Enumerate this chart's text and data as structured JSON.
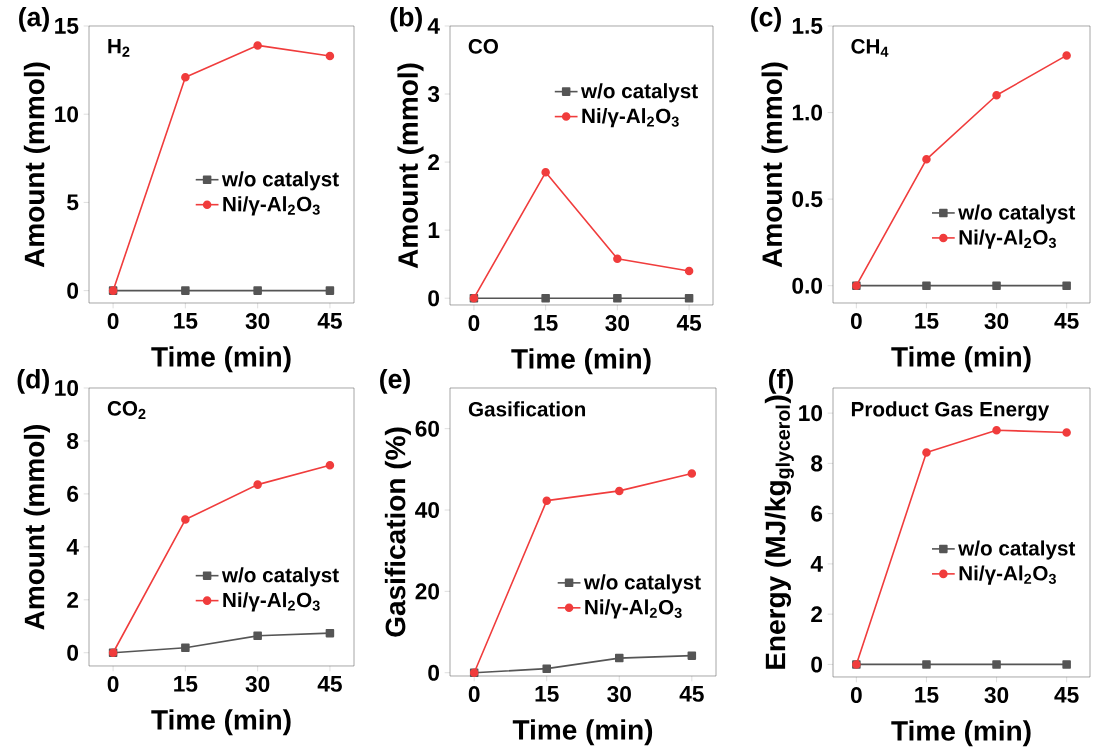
{
  "chart_data": [
    {
      "type": "line",
      "title": "H$_{2}$",
      "xlabel": "Time (min)",
      "ylabel": "Amount (mmol)",
      "annotations": [
        "(a)"
      ],
      "x": [
        0,
        15,
        30,
        45
      ],
      "xlim": [
        -5,
        50
      ],
      "ylim": [
        -0.7,
        15
      ],
      "xticks": [
        0,
        15,
        30,
        45
      ],
      "yticks": [
        0,
        5,
        10,
        15
      ],
      "legend": "right",
      "series": [
        {
          "name": "w/o catalyst",
          "color": "#555555",
          "marker": "square",
          "values": [
            0,
            0,
            0,
            0
          ]
        },
        {
          "name": "Ni/γ-Al$_{2}$O$_{3}$",
          "color": "#f03c3c",
          "marker": "circle",
          "values": [
            0,
            12.1,
            13.9,
            13.3
          ]
        }
      ]
    },
    {
      "type": "line",
      "title": "CO",
      "xlabel": "Time (min)",
      "ylabel": "Amount (mmol)",
      "annotations": [
        "(b)"
      ],
      "x": [
        0,
        15,
        30,
        45
      ],
      "xlim": [
        -5,
        50
      ],
      "ylim": [
        -0.1,
        4
      ],
      "xticks": [
        0,
        15,
        30,
        45
      ],
      "yticks": [
        0,
        1,
        2,
        3,
        4
      ],
      "legend": "top right",
      "series": [
        {
          "name": "w/o catalyst",
          "color": "#555555",
          "marker": "square",
          "values": [
            0,
            0,
            0,
            0
          ]
        },
        {
          "name": "Ni/γ-Al$_{2}$O$_{3}$",
          "color": "#f03c3c",
          "marker": "circle",
          "values": [
            0,
            1.85,
            0.58,
            0.4
          ]
        }
      ]
    },
    {
      "type": "line",
      "title": "CH$_{4}$",
      "xlabel": "Time (min)",
      "ylabel": "Amount (mmol)",
      "annotations": [
        "(c)"
      ],
      "x": [
        0,
        15,
        30,
        45
      ],
      "xlim": [
        -5,
        50
      ],
      "ylim": [
        -0.1,
        1.5
      ],
      "xticks": [
        0,
        15,
        30,
        45
      ],
      "yticks": [
        {
          "value": 0,
          "label": "0.0"
        },
        {
          "value": 0.5,
          "label": "0.5"
        },
        {
          "value": 1,
          "label": "1.0"
        },
        {
          "value": 1.5,
          "label": "1.5"
        }
      ],
      "legend": "bottom right",
      "series": [
        {
          "name": "w/o catalyst",
          "color": "#555555",
          "marker": "square",
          "values": [
            0,
            0,
            0,
            0
          ]
        },
        {
          "name": "Ni/γ-Al$_{2}$O$_{3}$",
          "color": "#f03c3c",
          "marker": "circle",
          "values": [
            0,
            0.73,
            1.1,
            1.33
          ]
        }
      ]
    },
    {
      "type": "line",
      "title": "CO$_{2}$",
      "xlabel": "Time (min)",
      "ylabel": "Amount (mmol)",
      "annotations": [
        "(d)"
      ],
      "x": [
        0,
        15,
        30,
        45
      ],
      "xlim": [
        -5,
        50
      ],
      "ylim": [
        -0.5,
        10
      ],
      "xticks": [
        0,
        15,
        30,
        45
      ],
      "yticks": [
        0,
        2,
        4,
        6,
        8,
        10
      ],
      "legend": "bottom right",
      "series": [
        {
          "name": "w/o catalyst",
          "color": "#555555",
          "marker": "square",
          "values": [
            0,
            0.19,
            0.64,
            0.74
          ]
        },
        {
          "name": "Ni/γ-Al$_{2}$O$_{3}$",
          "color": "#f03c3c",
          "marker": "circle",
          "values": [
            0,
            5.03,
            6.35,
            7.08
          ]
        }
      ]
    },
    {
      "type": "line",
      "title": "Gasification",
      "xlabel": "Time (min)",
      "ylabel": "Gasification (%)",
      "annotations": [
        "(e)"
      ],
      "x": [
        0,
        15,
        30,
        45
      ],
      "xlim": [
        -5,
        50
      ],
      "ylim": [
        -0.8,
        70
      ],
      "xticks": [
        0,
        15,
        30,
        45
      ],
      "yticks": [
        0,
        20,
        40,
        60
      ],
      "legend": "bottom right",
      "series": [
        {
          "name": "w/o catalyst",
          "color": "#555555",
          "marker": "square",
          "values": [
            0,
            1.0,
            3.6,
            4.2
          ]
        },
        {
          "name": "Ni/γ-Al$_{2}$O$_{3}$",
          "color": "#f03c3c",
          "marker": "circle",
          "values": [
            0,
            42.3,
            44.7,
            49.0
          ]
        }
      ]
    },
    {
      "type": "line",
      "title": "Product Gas Energy",
      "xlabel": "Time (min)",
      "ylabel": "Energy (MJ/kg$_{glycerol}$)",
      "annotations": [
        "(f)"
      ],
      "x": [
        0,
        15,
        30,
        45
      ],
      "xlim": [
        -5,
        50
      ],
      "ylim": [
        -0.5,
        11
      ],
      "xticks": [
        0,
        15,
        30,
        45
      ],
      "yticks": [
        0,
        2,
        4,
        6,
        8,
        10
      ],
      "legend": "right",
      "series": [
        {
          "name": "w/o catalyst",
          "color": "#555555",
          "marker": "square",
          "values": [
            0,
            0,
            0,
            0
          ]
        },
        {
          "name": "Ni/γ-Al$_{2}$O$_{3}$",
          "color": "#f03c3c",
          "marker": "circle",
          "values": [
            0,
            8.43,
            9.32,
            9.23
          ]
        }
      ]
    }
  ]
}
